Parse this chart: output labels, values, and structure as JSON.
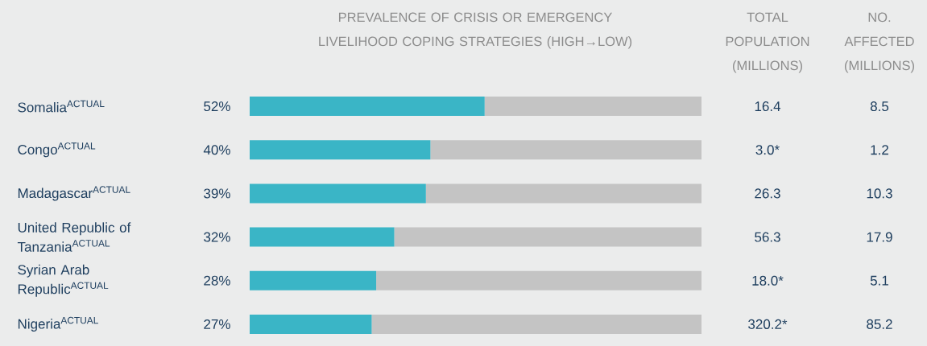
{
  "chart_data": {
    "type": "bar",
    "orientation": "horizontal",
    "stacked": true,
    "title": "PREVALENCE OF CRISIS OR EMERGENCY LIVELIHOOD COPING STRATEGIES (HIGH→LOW)",
    "categories": [
      "Somalia$^{ACTUAL}$",
      "Congo$^{ACTUAL}$",
      "Madagascar$^{ACTUAL}$",
      "United Republic of Tanzania$^{ACTUAL}$",
      "Syrian Arab Republic$^{ACTUAL}$",
      "Nigeria$^{ACTUAL}$"
    ],
    "series": [
      {
        "color": "#3ab5c6",
        "values": [
          52,
          40,
          39,
          32,
          28,
          27
        ],
        "value_labels": [
          "52%",
          "40%",
          "39%",
          "32%",
          "28%",
          "27%"
        ]
      },
      {
        "color": "#c4c4c4",
        "values": [
          48,
          60,
          61,
          68,
          72,
          73
        ]
      }
    ],
    "xlim": [
      0,
      100
    ],
    "tick_labels": "y",
    "annotations": [
      "TOTAL POPULATION (MILLIONS)",
      "NO. AFFECTED (MILLIONS)",
      "16.4",
      "8.5",
      "3.0*",
      "1.2",
      "26.3",
      "10.3",
      "56.3",
      "17.9",
      "18.0*",
      "5.1",
      "320.2*",
      "85.2"
    ]
  }
}
